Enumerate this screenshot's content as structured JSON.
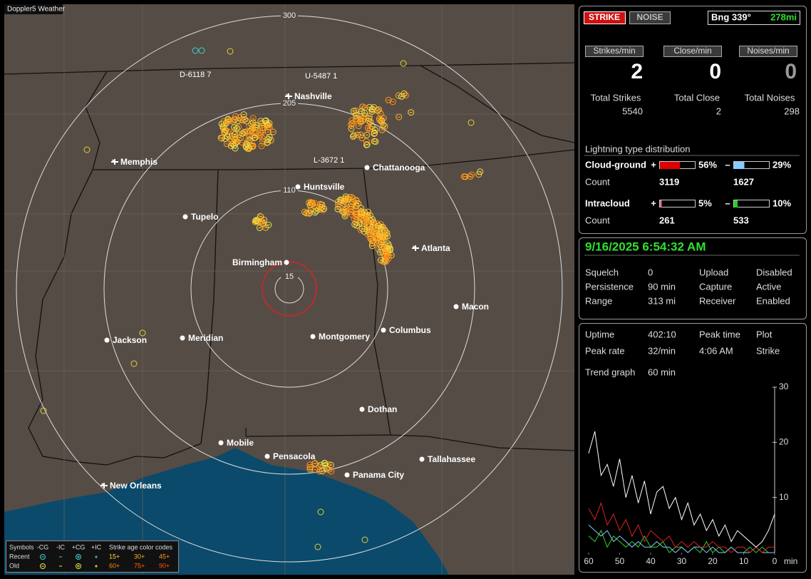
{
  "app_title": "Doppler5 Weather",
  "map": {
    "rings": [
      "300",
      "205",
      "110",
      "15"
    ],
    "stations": [
      "D-6118 7",
      "U-5487 1",
      "L-3672 1"
    ],
    "cities": [
      "Nashville",
      "Memphis",
      "Chattanooga",
      "Huntsville",
      "Tupelo",
      "Atlanta",
      "Birmingham",
      "Macon",
      "Jackson",
      "Meridian",
      "Montgomery",
      "Columbus",
      "Dothan",
      "Mobile",
      "Pensacola",
      "Tallahassee",
      "Panama City",
      "New Orleans"
    ]
  },
  "legend": {
    "heading": "Symbols",
    "symbols": [
      "-CG",
      "-IC",
      "+CG",
      "+IC"
    ],
    "age_heading": "Strike age color codes",
    "rows": [
      {
        "label": "Recent",
        "ages": [
          "15+",
          "30+",
          "45+"
        ]
      },
      {
        "label": "Old",
        "ages": [
          "60+",
          "75+",
          "90+"
        ]
      }
    ]
  },
  "status": {
    "mode_buttons": [
      "STRIKE",
      "NOISE"
    ],
    "bearing": "Bng 339°",
    "distance": "278mi",
    "rates": [
      {
        "label": "Strikes/min",
        "value": 2
      },
      {
        "label": "Close/min",
        "value": 0
      },
      {
        "label": "Noises/min",
        "value": 0
      }
    ],
    "totals": [
      {
        "label": "Total Strikes",
        "value": 5540
      },
      {
        "label": "Total Close",
        "value": 2
      },
      {
        "label": "Total Noises",
        "value": 298
      }
    ],
    "distribution": {
      "title": "Lightning type distribution",
      "count_label": "Count",
      "signs": [
        "+",
        "–"
      ],
      "types": [
        {
          "label": "Cloud-ground",
          "values": [
            56,
            29
          ],
          "value_labels": [
            "56%",
            "29%"
          ],
          "counts": [
            3119,
            1627
          ]
        },
        {
          "label": "Intracloud",
          "values": [
            5,
            10
          ],
          "value_labels": [
            "5%",
            "10%"
          ],
          "counts": [
            261,
            533
          ]
        }
      ]
    }
  },
  "receiver": {
    "datetime": "9/16/2025 6:54:32 AM",
    "settings": [
      [
        "Squelch",
        0,
        "Upload",
        "Disabled"
      ],
      [
        "Persistence",
        "90 min",
        "Capture",
        "Active"
      ],
      [
        "Range",
        "313 mi",
        "Receiver",
        "Enabled"
      ]
    ]
  },
  "stats": {
    "rows": [
      [
        "Uptime",
        "402:10",
        "Peak time",
        "Plot"
      ],
      [
        "Peak rate",
        "32/min",
        "4:06 AM",
        "Strike"
      ]
    ],
    "trend_label": "Trend graph",
    "trend_window": "60 min"
  },
  "chart_data": {
    "type": "line",
    "x": [
      60,
      58,
      56,
      54,
      52,
      50,
      48,
      46,
      44,
      42,
      40,
      38,
      36,
      34,
      32,
      30,
      28,
      26,
      24,
      22,
      20,
      18,
      16,
      14,
      12,
      10,
      8,
      6,
      4,
      2,
      0
    ],
    "xlim": [
      60,
      0
    ],
    "xticks": [
      60,
      50,
      40,
      30,
      20,
      10,
      0
    ],
    "x_unit": "min",
    "ylim": [
      0,
      30
    ],
    "yticks": [
      10,
      20,
      30
    ],
    "series": [
      {
        "color": "#ffffff",
        "values": [
          18,
          22,
          14,
          16,
          12,
          17,
          10,
          14,
          9,
          13,
          7,
          11,
          12,
          8,
          10,
          6,
          9,
          5,
          7,
          4,
          6,
          3,
          5,
          2,
          4,
          3,
          2,
          1,
          2,
          4,
          7
        ]
      },
      {
        "color": "#e02020",
        "values": [
          8,
          6,
          9,
          5,
          7,
          4,
          6,
          3,
          5,
          2,
          4,
          3,
          2,
          3,
          1,
          2,
          1,
          2,
          1,
          1,
          2,
          1,
          1,
          0,
          1,
          1,
          0,
          1,
          0,
          1,
          1
        ]
      },
      {
        "color": "#88ccff",
        "values": [
          5,
          4,
          3,
          4,
          2,
          3,
          2,
          1,
          2,
          1,
          1,
          2,
          1,
          1,
          0,
          1,
          0,
          1,
          1,
          0,
          1,
          0,
          0,
          1,
          0,
          0,
          0,
          1,
          0,
          0,
          0
        ]
      },
      {
        "color": "#30d030",
        "values": [
          3,
          2,
          4,
          1,
          3,
          2,
          1,
          2,
          1,
          3,
          1,
          1,
          2,
          0,
          1,
          1,
          0,
          1,
          0,
          2,
          0,
          1,
          0,
          1,
          0,
          0,
          1,
          0,
          1,
          0,
          0
        ]
      }
    ]
  }
}
